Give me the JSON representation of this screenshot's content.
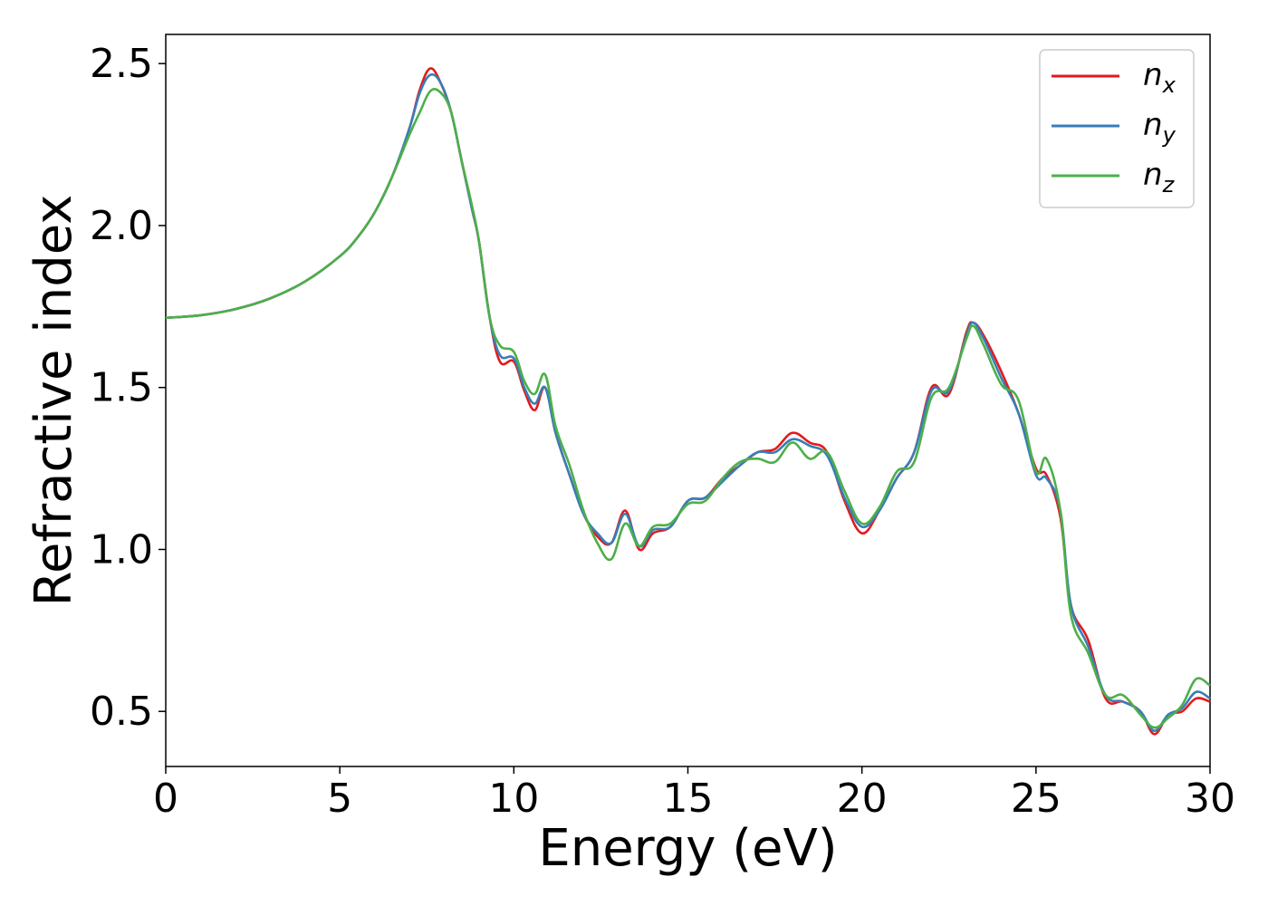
{
  "chart_data": {
    "type": "line",
    "title": "",
    "xlabel": "Energy (eV)",
    "ylabel": "Refractive index",
    "xlim": [
      0,
      30
    ],
    "ylim": [
      0.33,
      2.59
    ],
    "xticks": [
      0,
      5,
      10,
      15,
      20,
      25,
      30
    ],
    "xtick_labels": [
      "0",
      "5",
      "10",
      "15",
      "20",
      "25",
      "30"
    ],
    "yticks": [
      0.5,
      1.0,
      1.5,
      2.0,
      2.5
    ],
    "ytick_labels": [
      "0.5",
      "1.0",
      "1.5",
      "2.0",
      "2.5"
    ],
    "grid": false,
    "legend_position": "top-right",
    "x": [
      0,
      1,
      2,
      3,
      4,
      5,
      5.5,
      6,
      6.5,
      7,
      7.3,
      7.6,
      7.9,
      8.2,
      8.5,
      8.8,
      9.0,
      9.3,
      9.6,
      10.0,
      10.3,
      10.6,
      10.9,
      11.2,
      11.6,
      12.0,
      12.4,
      12.8,
      13.2,
      13.6,
      14.0,
      14.5,
      15.0,
      15.5,
      16.0,
      16.5,
      17.0,
      17.5,
      18.0,
      18.5,
      19.0,
      19.5,
      20.0,
      20.5,
      21.0,
      21.5,
      22.0,
      22.5,
      23.0,
      23.2,
      23.5,
      24.0,
      24.5,
      25.0,
      25.3,
      25.7,
      26.0,
      26.5,
      27.0,
      27.5,
      28.0,
      28.4,
      28.8,
      29.2,
      29.6,
      30.0
    ],
    "series": [
      {
        "name": "n_x",
        "color": "#e41a1c",
        "values": [
          1.715,
          1.723,
          1.742,
          1.775,
          1.827,
          1.905,
          1.962,
          2.04,
          2.15,
          2.3,
          2.42,
          2.485,
          2.44,
          2.35,
          2.2,
          2.05,
          1.95,
          1.72,
          1.58,
          1.58,
          1.49,
          1.43,
          1.5,
          1.36,
          1.23,
          1.11,
          1.04,
          1.02,
          1.12,
          1.0,
          1.05,
          1.07,
          1.15,
          1.16,
          1.22,
          1.26,
          1.3,
          1.31,
          1.36,
          1.33,
          1.3,
          1.15,
          1.05,
          1.12,
          1.22,
          1.3,
          1.5,
          1.48,
          1.67,
          1.7,
          1.66,
          1.55,
          1.42,
          1.25,
          1.23,
          1.1,
          0.83,
          0.72,
          0.54,
          0.53,
          0.5,
          0.43,
          0.49,
          0.5,
          0.54,
          0.53
        ]
      },
      {
        "name": "n_y",
        "color": "#377eb8",
        "values": [
          1.715,
          1.723,
          1.742,
          1.775,
          1.827,
          1.905,
          1.962,
          2.04,
          2.15,
          2.3,
          2.41,
          2.465,
          2.44,
          2.35,
          2.2,
          2.05,
          1.95,
          1.72,
          1.6,
          1.59,
          1.5,
          1.45,
          1.5,
          1.36,
          1.23,
          1.11,
          1.05,
          1.02,
          1.11,
          1.01,
          1.06,
          1.07,
          1.15,
          1.16,
          1.21,
          1.26,
          1.3,
          1.3,
          1.34,
          1.32,
          1.29,
          1.16,
          1.07,
          1.12,
          1.22,
          1.3,
          1.49,
          1.49,
          1.66,
          1.7,
          1.65,
          1.53,
          1.42,
          1.23,
          1.22,
          1.12,
          0.83,
          0.7,
          0.55,
          0.53,
          0.5,
          0.44,
          0.49,
          0.51,
          0.56,
          0.54
        ]
      },
      {
        "name": "n_z",
        "color": "#4daf4a",
        "values": [
          1.715,
          1.723,
          1.742,
          1.775,
          1.827,
          1.905,
          1.962,
          2.04,
          2.15,
          2.28,
          2.35,
          2.415,
          2.41,
          2.35,
          2.2,
          2.06,
          1.95,
          1.72,
          1.63,
          1.61,
          1.52,
          1.48,
          1.54,
          1.38,
          1.26,
          1.12,
          1.02,
          0.97,
          1.08,
          1.01,
          1.07,
          1.08,
          1.14,
          1.15,
          1.22,
          1.27,
          1.28,
          1.27,
          1.33,
          1.28,
          1.3,
          1.18,
          1.08,
          1.13,
          1.24,
          1.27,
          1.47,
          1.5,
          1.65,
          1.69,
          1.63,
          1.51,
          1.46,
          1.24,
          1.28,
          1.12,
          0.8,
          0.68,
          0.55,
          0.55,
          0.49,
          0.45,
          0.48,
          0.52,
          0.6,
          0.58
        ]
      }
    ]
  },
  "legend": {
    "items": [
      {
        "base": "n",
        "sub": "x",
        "color": "#e41a1c"
      },
      {
        "base": "n",
        "sub": "y",
        "color": "#377eb8"
      },
      {
        "base": "n",
        "sub": "z",
        "color": "#4daf4a"
      }
    ]
  }
}
